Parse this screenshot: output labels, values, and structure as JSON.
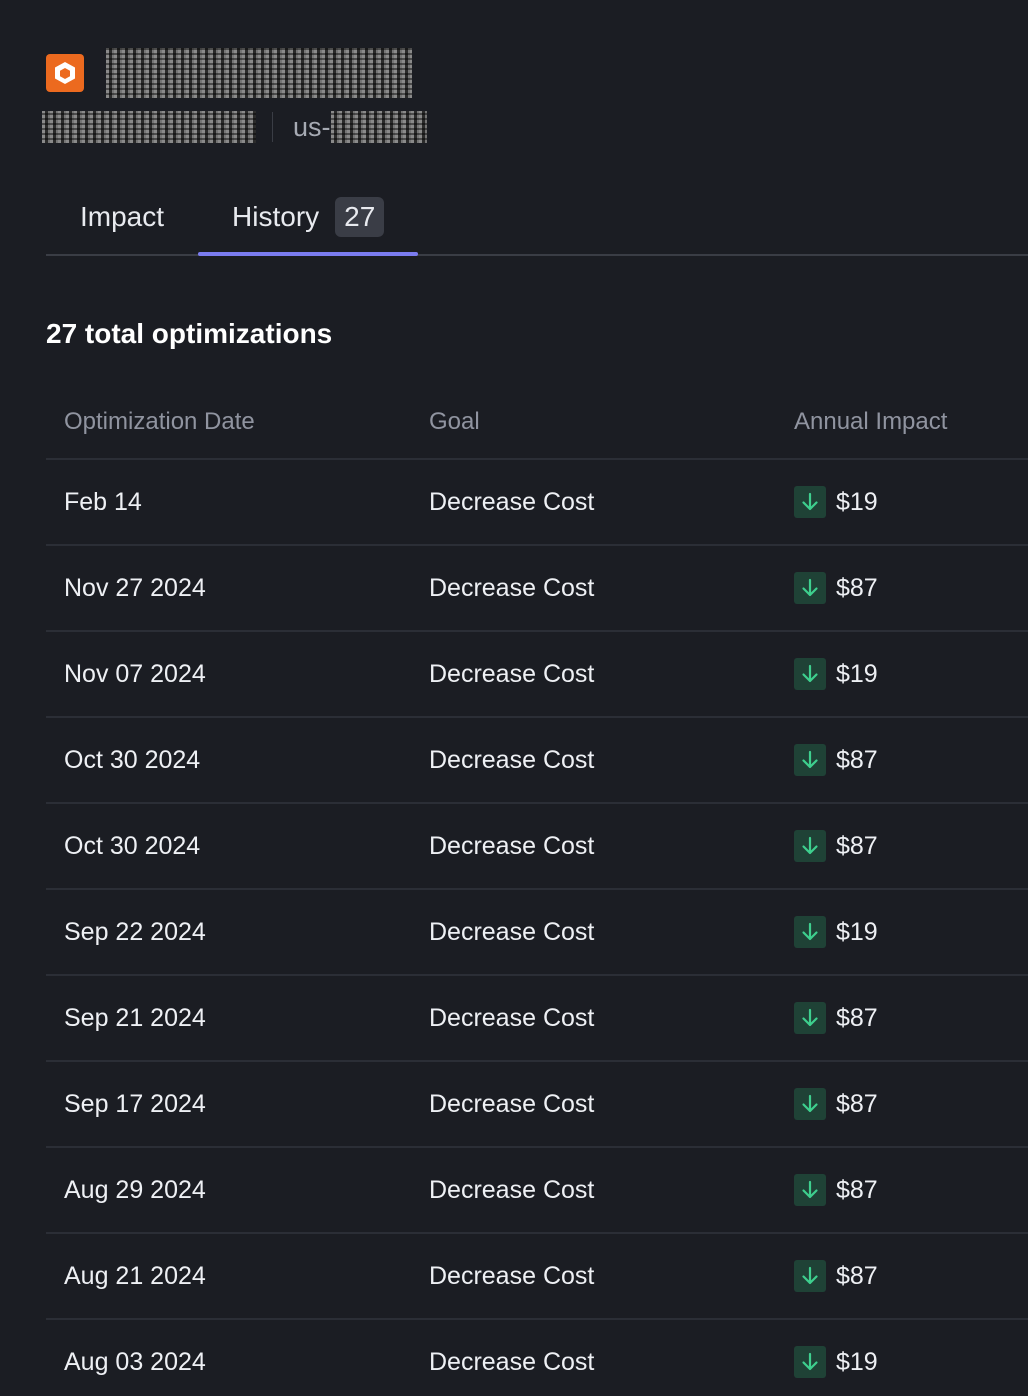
{
  "header": {
    "region_prefix": "us-"
  },
  "tabs": [
    {
      "label": "Impact"
    },
    {
      "label": "History",
      "badge": "27"
    }
  ],
  "summary": {
    "title": "27 total optimizations"
  },
  "table": {
    "columns": [
      "Optimization Date",
      "Goal",
      "Annual Impact"
    ],
    "rows": [
      {
        "date": "Feb 14",
        "goal": "Decrease Cost",
        "impact": "$19"
      },
      {
        "date": "Nov 27 2024",
        "goal": "Decrease Cost",
        "impact": "$87"
      },
      {
        "date": "Nov 07 2024",
        "goal": "Decrease Cost",
        "impact": "$19"
      },
      {
        "date": "Oct 30 2024",
        "goal": "Decrease Cost",
        "impact": "$87"
      },
      {
        "date": "Oct 30 2024",
        "goal": "Decrease Cost",
        "impact": "$87"
      },
      {
        "date": "Sep 22 2024",
        "goal": "Decrease Cost",
        "impact": "$19"
      },
      {
        "date": "Sep 21 2024",
        "goal": "Decrease Cost",
        "impact": "$87"
      },
      {
        "date": "Sep 17 2024",
        "goal": "Decrease Cost",
        "impact": "$87"
      },
      {
        "date": "Aug 29 2024",
        "goal": "Decrease Cost",
        "impact": "$87"
      },
      {
        "date": "Aug 21 2024",
        "goal": "Decrease Cost",
        "impact": "$87"
      },
      {
        "date": "Aug 03 2024",
        "goal": "Decrease Cost",
        "impact": "$19"
      }
    ]
  },
  "colors": {
    "background": "#1b1d23",
    "logo": "#ec6a1f",
    "tab_indicator": "#7b7cf0",
    "decrease_arrow": "#3ecf8e",
    "decrease_arrow_bg": "#1f4236"
  },
  "icons": {
    "logo": "hexagon-logo-icon",
    "impact_direction": "arrow-down-icon"
  }
}
